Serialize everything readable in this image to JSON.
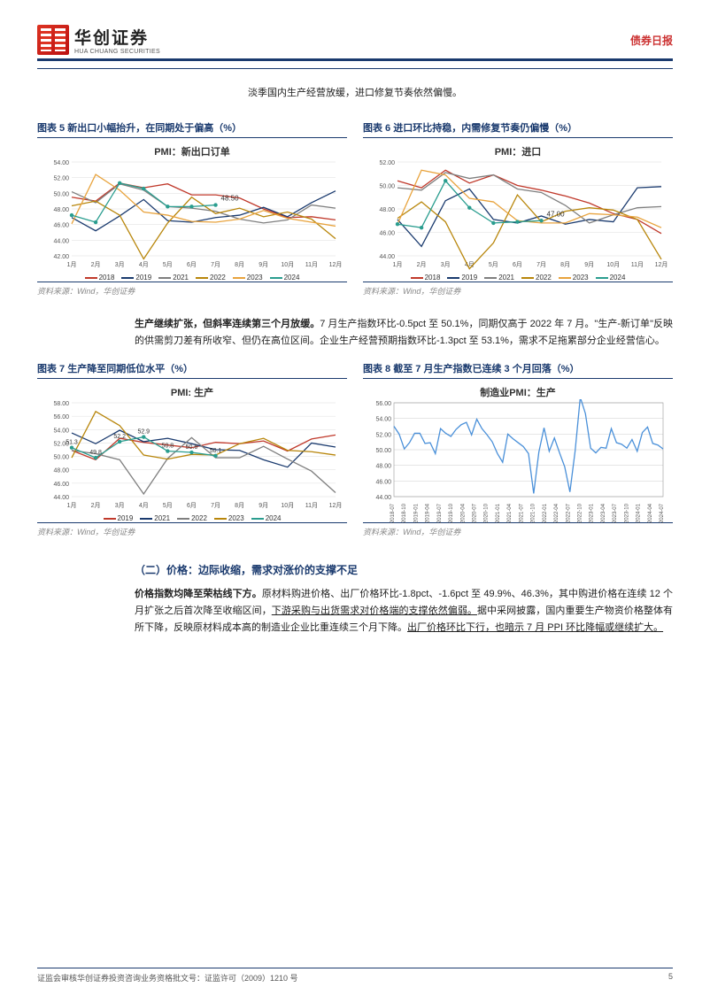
{
  "header": {
    "company_cn": "华创证券",
    "company_en": "HUA CHUANG SECURITIES",
    "doc_type": "债券日报"
  },
  "intro": "淡季国内生产经营放缓，进口修复节奏依然偏慢。",
  "charts": {
    "c5": {
      "title": "图表 5  新出口小幅抬升，在同期处于偏高（%）",
      "inner_title": "PMI：新出口订单",
      "ylim": [
        42,
        54
      ],
      "yticks": [
        42,
        44,
        46,
        48,
        50,
        52,
        54
      ],
      "xlabels": [
        "1月",
        "2月",
        "3月",
        "4月",
        "5月",
        "6月",
        "7月",
        "8月",
        "9月",
        "10月",
        "11月",
        "12月"
      ],
      "series": [
        {
          "name": "2018",
          "color": "#c0392b",
          "data": [
            49.5,
            49.0,
            51.3,
            50.7,
            51.2,
            49.8,
            49.8,
            49.4,
            48.0,
            46.9,
            47.0,
            46.6
          ]
        },
        {
          "name": "2019",
          "color": "#1a3a6e",
          "data": [
            46.9,
            45.2,
            47.1,
            49.2,
            46.5,
            46.3,
            46.9,
            47.2,
            48.2,
            47.0,
            48.8,
            50.3
          ]
        },
        {
          "name": "2021",
          "color": "#7f7f7f",
          "data": [
            50.2,
            48.8,
            51.2,
            50.4,
            48.3,
            48.1,
            47.7,
            46.7,
            46.2,
            46.6,
            48.5,
            48.1
          ]
        },
        {
          "name": "2022",
          "color": "#b8860b",
          "data": [
            48.4,
            49.0,
            47.2,
            41.6,
            46.2,
            49.5,
            47.4,
            48.1,
            47.0,
            47.6,
            46.7,
            44.2
          ]
        },
        {
          "name": "2023",
          "color": "#e8a33d",
          "data": [
            46.1,
            52.4,
            50.4,
            47.6,
            47.2,
            46.4,
            46.3,
            46.7,
            47.8,
            46.8,
            46.3,
            45.8
          ]
        },
        {
          "name": "2024",
          "color": "#2a9d8f",
          "data": [
            47.2,
            46.3,
            51.3,
            50.6,
            48.3,
            48.3,
            48.5
          ],
          "markers": true,
          "last_label": "48.50"
        }
      ],
      "source": "资料来源：Wind，华创证券"
    },
    "c6": {
      "title": "图表 6  进口环比持稳，内需修复节奏仍偏慢（%）",
      "inner_title": "PMI：进口",
      "ylim": [
        44,
        52
      ],
      "yticks": [
        44,
        46,
        48,
        50,
        52
      ],
      "xlabels": [
        "1月",
        "2月",
        "3月",
        "4月",
        "5月",
        "6月",
        "7月",
        "8月",
        "9月",
        "10月",
        "11月",
        "12月"
      ],
      "series": [
        {
          "name": "2018",
          "color": "#c0392b",
          "data": [
            50.4,
            49.8,
            51.3,
            50.2,
            50.9,
            50.0,
            49.6,
            49.1,
            48.5,
            47.6,
            47.1,
            45.9
          ]
        },
        {
          "name": "2019",
          "color": "#1a3a6e",
          "data": [
            47.1,
            44.8,
            48.7,
            49.7,
            47.1,
            46.8,
            47.4,
            46.7,
            47.1,
            46.9,
            49.8,
            49.9
          ]
        },
        {
          "name": "2021",
          "color": "#7f7f7f",
          "data": [
            49.8,
            49.6,
            51.1,
            50.6,
            50.9,
            49.7,
            49.4,
            48.3,
            46.8,
            47.5,
            48.1,
            48.2
          ]
        },
        {
          "name": "2022",
          "color": "#b8860b",
          "data": [
            47.2,
            48.6,
            46.9,
            42.9,
            45.1,
            49.2,
            46.9,
            47.8,
            48.1,
            47.9,
            47.1,
            43.7
          ]
        },
        {
          "name": "2023",
          "color": "#e8a33d",
          "data": [
            46.7,
            51.3,
            50.9,
            48.9,
            48.6,
            47.0,
            46.8,
            46.8,
            47.6,
            47.5,
            47.3,
            46.4
          ]
        },
        {
          "name": "2024",
          "color": "#2a9d8f",
          "data": [
            46.7,
            46.4,
            50.4,
            48.1,
            46.8,
            46.9,
            47.0
          ],
          "markers": true,
          "last_label": "47.00"
        }
      ],
      "source": "资料来源：Wind，华创证券"
    },
    "c7": {
      "title": "图表 7  生产降至同期低位水平（%）",
      "inner_title": "PMI: 生产",
      "ylim": [
        44,
        58
      ],
      "yticks": [
        44,
        46,
        48,
        50,
        52,
        54,
        56,
        58
      ],
      "xlabels": [
        "1月",
        "2月",
        "3月",
        "4月",
        "5月",
        "6月",
        "7月",
        "8月",
        "9月",
        "10月",
        "11月",
        "12月"
      ],
      "series": [
        {
          "name": "2019",
          "color": "#c0392b",
          "data": [
            50.9,
            49.5,
            52.7,
            52.1,
            51.7,
            51.3,
            52.1,
            51.9,
            52.3,
            50.8,
            52.6,
            53.2
          ]
        },
        {
          "name": "2021",
          "color": "#1a3a6e",
          "data": [
            53.5,
            51.9,
            53.9,
            52.2,
            52.7,
            51.9,
            51.0,
            50.9,
            49.5,
            48.4,
            52.0,
            51.4
          ]
        },
        {
          "name": "2022",
          "color": "#7f7f7f",
          "data": [
            50.9,
            50.4,
            49.5,
            44.4,
            49.7,
            52.8,
            49.8,
            49.8,
            51.5,
            49.6,
            47.8,
            44.6
          ]
        },
        {
          "name": "2023",
          "color": "#b8860b",
          "data": [
            49.8,
            56.7,
            54.6,
            50.2,
            49.6,
            50.3,
            50.2,
            51.9,
            52.7,
            50.9,
            50.7,
            50.2
          ]
        },
        {
          "name": "2024",
          "color": "#2a9d8f",
          "data": [
            51.3,
            49.8,
            52.2,
            52.9,
            50.8,
            50.6,
            50.1
          ],
          "markers": true,
          "point_labels": [
            [
              0,
              "51.3"
            ],
            [
              1,
              "49.8"
            ],
            [
              2,
              "52.2"
            ],
            [
              3,
              "52.9"
            ],
            [
              4,
              "50.8"
            ],
            [
              5,
              "50.6"
            ],
            [
              6,
              "50.1"
            ]
          ]
        }
      ],
      "source": "资料来源：Wind，华创证券"
    },
    "c8": {
      "title": "图表 8  截至 7 月生产指数已连续 3 个月回落（%）",
      "inner_title": "制造业PMI：生产",
      "type": "timeseries",
      "ylim": [
        44,
        56
      ],
      "yticks": [
        44,
        46,
        48,
        50,
        52,
        54,
        56
      ],
      "color": "#4a90d9",
      "xlabels": [
        "2018-07",
        "2018-10",
        "2019-01",
        "2019-04",
        "2019-07",
        "2019-10",
        "2020-04",
        "2020-07",
        "2020-10",
        "2021-01",
        "2021-04",
        "2021-07",
        "2021-10",
        "2022-01",
        "2022-04",
        "2022-07",
        "2022-10",
        "2023-01",
        "2023-04",
        "2023-07",
        "2023-10",
        "2024-01",
        "2024-04",
        "2024-07"
      ],
      "data": [
        53.0,
        52.0,
        50.1,
        50.9,
        52.1,
        52.1,
        50.8,
        50.9,
        49.5,
        52.7,
        52.1,
        51.7,
        52.6,
        53.2,
        53.5,
        51.9,
        53.9,
        52.7,
        51.9,
        51.0,
        49.5,
        48.4,
        52.0,
        51.4,
        50.9,
        50.4,
        49.5,
        44.4,
        49.7,
        52.8,
        49.8,
        51.5,
        49.6,
        47.8,
        44.6,
        49.8,
        56.7,
        54.6,
        50.2,
        49.6,
        50.3,
        50.2,
        52.7,
        50.9,
        50.7,
        50.2,
        51.3,
        49.8,
        52.2,
        52.9,
        50.8,
        50.6,
        50.1
      ],
      "source": "资料来源：Wind，华创证券"
    }
  },
  "para1": {
    "bold": "生产继续扩张，但斜率连续第三个月放缓。",
    "text": "7 月生产指数环比-0.5pct 至 50.1%，同期仅高于 2022 年 7 月。\"生产-新订单\"反映的供需剪刀差有所收窄、但仍在高位区间。企业生产经营预期指数环比-1.3pct 至 53.1%，需求不足拖累部分企业经营信心。"
  },
  "section2": {
    "title": "（二）价格：边际收缩，需求对涨价的支撑不足",
    "para_bold": "价格指数均降至荣枯线下方。",
    "para_text1": "原材料购进价格、出厂价格环比-1.8pct、-1.6pct 至 49.9%、46.3%，其中购进价格在连续 12 个月扩张之后首次降至收缩区间，",
    "para_ul1": "下游采购与出货需求对价格端的支撑依然偏弱。",
    "para_text2": "据中采网披露，国内重要生产物资价格整体有所下降，反映原材料成本高的制造业企业比重连续三个月下降。",
    "para_ul2": "出厂价格环比下行，也暗示 7 月 PPI 环比降幅或继续扩大。"
  },
  "footer": {
    "left": "证监会审核华创证券投资咨询业务资格批文号：证监许可（2009）1210 号",
    "page": "5"
  }
}
